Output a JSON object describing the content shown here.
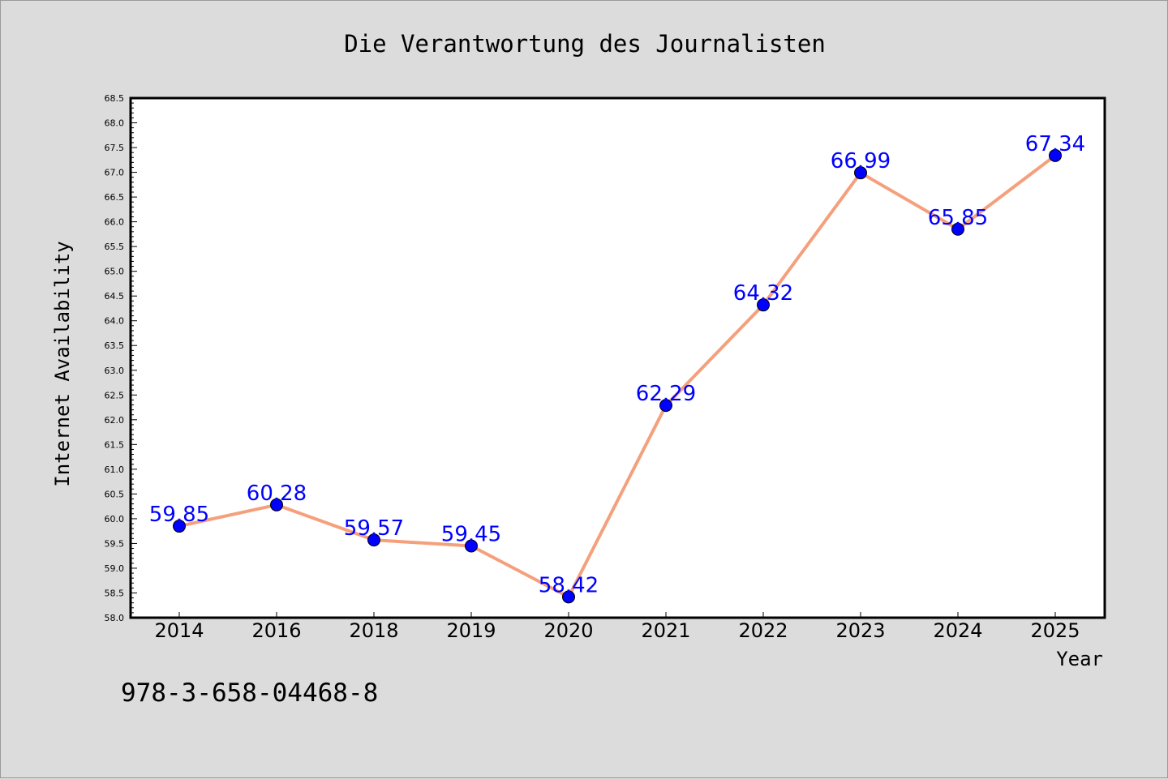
{
  "footer_text": "978-3-658-04468-8",
  "colors": {
    "background": "#dcdcdc",
    "plot_area": "#ffffff",
    "line": "#f5a07c",
    "marker": "#0000ff",
    "data_label": "#0000ff"
  },
  "chart_data": {
    "type": "line",
    "title": "Die Verantwortung des Journalisten",
    "xlabel": "Year",
    "ylabel": "Internet Availability",
    "categories": [
      "2014",
      "2016",
      "2018",
      "2019",
      "2020",
      "2021",
      "2022",
      "2023",
      "2024",
      "2025"
    ],
    "series": [
      {
        "values": [
          59.85,
          60.28,
          59.57,
          59.45,
          58.42,
          62.29,
          64.32,
          66.99,
          65.85,
          67.34
        ],
        "labels": [
          "59.85",
          "60.28",
          "59.57",
          "59.45",
          "58.42",
          "62.29",
          "64.32",
          "66.99",
          "65.85",
          "67.34"
        ]
      }
    ],
    "ylim": [
      58.0,
      68.5
    ],
    "yticks": [
      "58.0",
      "58.5",
      "59.0",
      "59.5",
      "60.0",
      "60.5",
      "61.0",
      "61.5",
      "62.0",
      "62.5",
      "63.0",
      "63.5",
      "64.0",
      "64.5",
      "65.0",
      "65.5",
      "66.0",
      "66.5",
      "67.0",
      "67.5",
      "68.0",
      "68.5"
    ],
    "grid": false,
    "legend": "none"
  }
}
